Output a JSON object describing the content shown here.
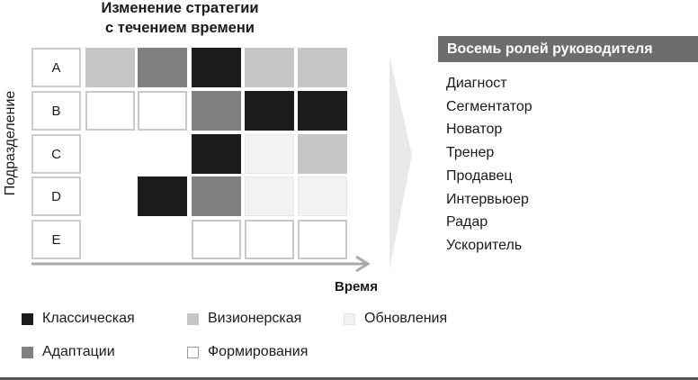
{
  "title_line1": "Изменение стратегии",
  "title_line2": "с течением времени",
  "y_axis_label": "Подразделение",
  "x_axis_label": "Время",
  "colors": {
    "K": "#1c1c1e",
    "V": "#c6c6c8",
    "O": "#f1f2f1",
    "A": "#808082",
    "F": "#ffffff"
  },
  "rows": [
    {
      "label": "A",
      "cells": [
        "V",
        "A",
        "K",
        "V",
        "V"
      ]
    },
    {
      "label": "B",
      "cells": [
        "F",
        "F",
        "A",
        "K",
        "K"
      ]
    },
    {
      "label": "C",
      "cells": [
        null,
        null,
        "K",
        "O",
        "V"
      ]
    },
    {
      "label": "D",
      "cells": [
        null,
        "K",
        "A",
        "O",
        "O"
      ]
    },
    {
      "label": "E",
      "cells": [
        null,
        null,
        "F",
        "F",
        "F"
      ]
    }
  ],
  "legend": [
    {
      "code": "K",
      "label": "Классическая"
    },
    {
      "code": "V",
      "label": "Визионерская"
    },
    {
      "code": "O",
      "label": "Обновления"
    },
    {
      "code": "A",
      "label": "Адаптации"
    },
    {
      "code": "F",
      "label": "Формирования"
    }
  ],
  "roles_title": "Восемь ролей руководителя",
  "roles": [
    "Диагност",
    "Сегментатор",
    "Новатор",
    "Тренер",
    "Продавец",
    "Интервьюер",
    "Радар",
    "Ускоритель"
  ]
}
